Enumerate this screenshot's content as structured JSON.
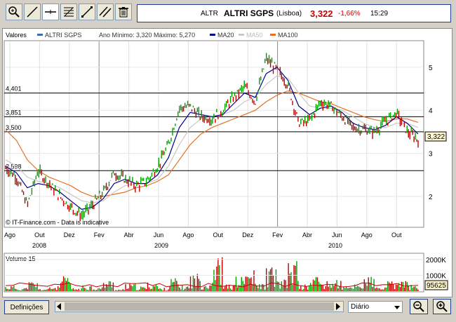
{
  "toolbar": {
    "tools": [
      {
        "name": "zoom-tool-button",
        "icon": "magnifier-icon"
      },
      {
        "name": "line-tool-button",
        "icon": "diagonal-line-icon"
      },
      {
        "name": "horizontal-line-tool-button",
        "icon": "horizontal-line-icon"
      },
      {
        "name": "fibonacci-tool-button",
        "icon": "fibonacci-icon"
      },
      {
        "name": "trend-tool-button",
        "icon": "trend-line-icon"
      },
      {
        "name": "channel-tool-button",
        "icon": "parallel-lines-icon"
      },
      {
        "name": "delete-tool-button",
        "icon": "trash-icon"
      }
    ]
  },
  "quote": {
    "ticker": "ALTR",
    "name": "ALTRI SGPS",
    "exchange": "(Lisboa)",
    "price": "3,322",
    "change": "-1,66%",
    "time": "15:29",
    "price_color": "#cc0000"
  },
  "legend": {
    "label": "Valores",
    "series_name": "ALTRI SGPS",
    "range_text": "Ano Mínimo: 3,320 Máximo: 5,270",
    "ma20": "MA20",
    "ma50": "MA50",
    "ma100": "MA100"
  },
  "price_panel": {
    "h_levels": [
      "4,401",
      "3,851",
      "3,500",
      "2,598"
    ],
    "last_price": "3,322",
    "watermark": "© IT-Finance.com - Data is indicative"
  },
  "volume_panel": {
    "label": "Volume 15",
    "last_volume": "95625",
    "ticks": [
      "2000K",
      "1000K"
    ]
  },
  "bottom": {
    "settings_label": "Definições",
    "period_value": "Diário"
  },
  "colors": {
    "price_up": "#00a000",
    "price_down": "#c00000",
    "ma20": "#00008b",
    "ma50": "#c8c8c8",
    "ma100": "#e87020",
    "toolbar_border": "#1c3f94"
  },
  "chart_data": [
    {
      "type": "line",
      "title": "ALTRI SGPS",
      "x_tick_labels": [
        "Ago",
        "Out",
        "Dez",
        "Fev",
        "Abr",
        "Jun",
        "Ago",
        "Out",
        "Dez",
        "Fev",
        "Abr",
        "Jun",
        "Ago",
        "Out"
      ],
      "year_labels": [
        "2008",
        "2009",
        "2010"
      ],
      "y_ticks": [
        2,
        3,
        4,
        5
      ],
      "ylim": [
        1.3,
        5.6
      ],
      "series": [
        {
          "name": "ALTRI SGPS",
          "values": [
            2.65,
            2.45,
            1.8,
            2.6,
            2.3,
            2.0,
            1.75,
            1.55,
            1.8,
            2.1,
            2.55,
            2.4,
            2.25,
            2.35,
            2.7,
            3.2,
            4.05,
            4.1,
            3.85,
            3.8,
            4.0,
            4.3,
            4.55,
            4.2,
            5.2,
            4.95,
            4.6,
            3.7,
            3.75,
            4.2,
            4.1,
            3.85,
            3.6,
            3.55,
            3.5,
            3.75,
            3.95,
            3.5,
            3.32
          ]
        },
        {
          "name": "MA20",
          "values": [
            2.7,
            2.55,
            2.2,
            2.3,
            2.25,
            2.1,
            1.9,
            1.7,
            1.75,
            1.95,
            2.3,
            2.4,
            2.3,
            2.3,
            2.5,
            2.9,
            3.6,
            3.95,
            3.9,
            3.85,
            3.9,
            4.15,
            4.4,
            4.3,
            4.85,
            5.0,
            4.7,
            4.1,
            3.9,
            4.05,
            4.1,
            3.95,
            3.7,
            3.6,
            3.55,
            3.65,
            3.85,
            3.7,
            3.45
          ]
        },
        {
          "name": "MA50",
          "values": [
            2.85,
            2.7,
            2.45,
            2.35,
            2.3,
            2.2,
            2.05,
            1.9,
            1.85,
            1.9,
            2.1,
            2.25,
            2.3,
            2.3,
            2.4,
            2.7,
            3.2,
            3.6,
            3.8,
            3.85,
            3.9,
            4.0,
            4.2,
            4.3,
            4.6,
            4.8,
            4.75,
            4.4,
            4.1,
            4.05,
            4.05,
            4.0,
            3.85,
            3.7,
            3.6,
            3.6,
            3.7,
            3.7,
            3.6
          ]
        },
        {
          "name": "MA100",
          "values": [
            3.55,
            3.3,
            2.85,
            2.6,
            2.45,
            2.35,
            2.25,
            2.1,
            2.0,
            2.0,
            2.05,
            2.1,
            2.2,
            2.25,
            2.35,
            2.5,
            2.85,
            3.2,
            3.45,
            3.6,
            3.7,
            3.8,
            3.9,
            4.0,
            4.2,
            4.35,
            4.45,
            4.4,
            4.3,
            4.2,
            4.15,
            4.05,
            3.95,
            3.85,
            3.78,
            3.74,
            3.8,
            3.8,
            3.72
          ]
        }
      ]
    },
    {
      "type": "bar",
      "title": "Volume 15",
      "ylim": [
        0,
        2300000
      ],
      "y_ticks": [
        "2000K",
        "1000K"
      ],
      "values": [
        350000,
        220000,
        600000,
        150000,
        300000,
        900000,
        180000,
        400000,
        250000,
        700000,
        120000,
        450000,
        300000,
        550000,
        200000,
        800000,
        350000,
        1100000,
        600000,
        2150000,
        400000,
        900000,
        1300000,
        500000,
        1500000,
        700000,
        1900000,
        400000,
        1000000,
        600000,
        750000,
        300000,
        500000,
        900000,
        250000,
        600000,
        700000,
        400000,
        95625
      ]
    }
  ]
}
